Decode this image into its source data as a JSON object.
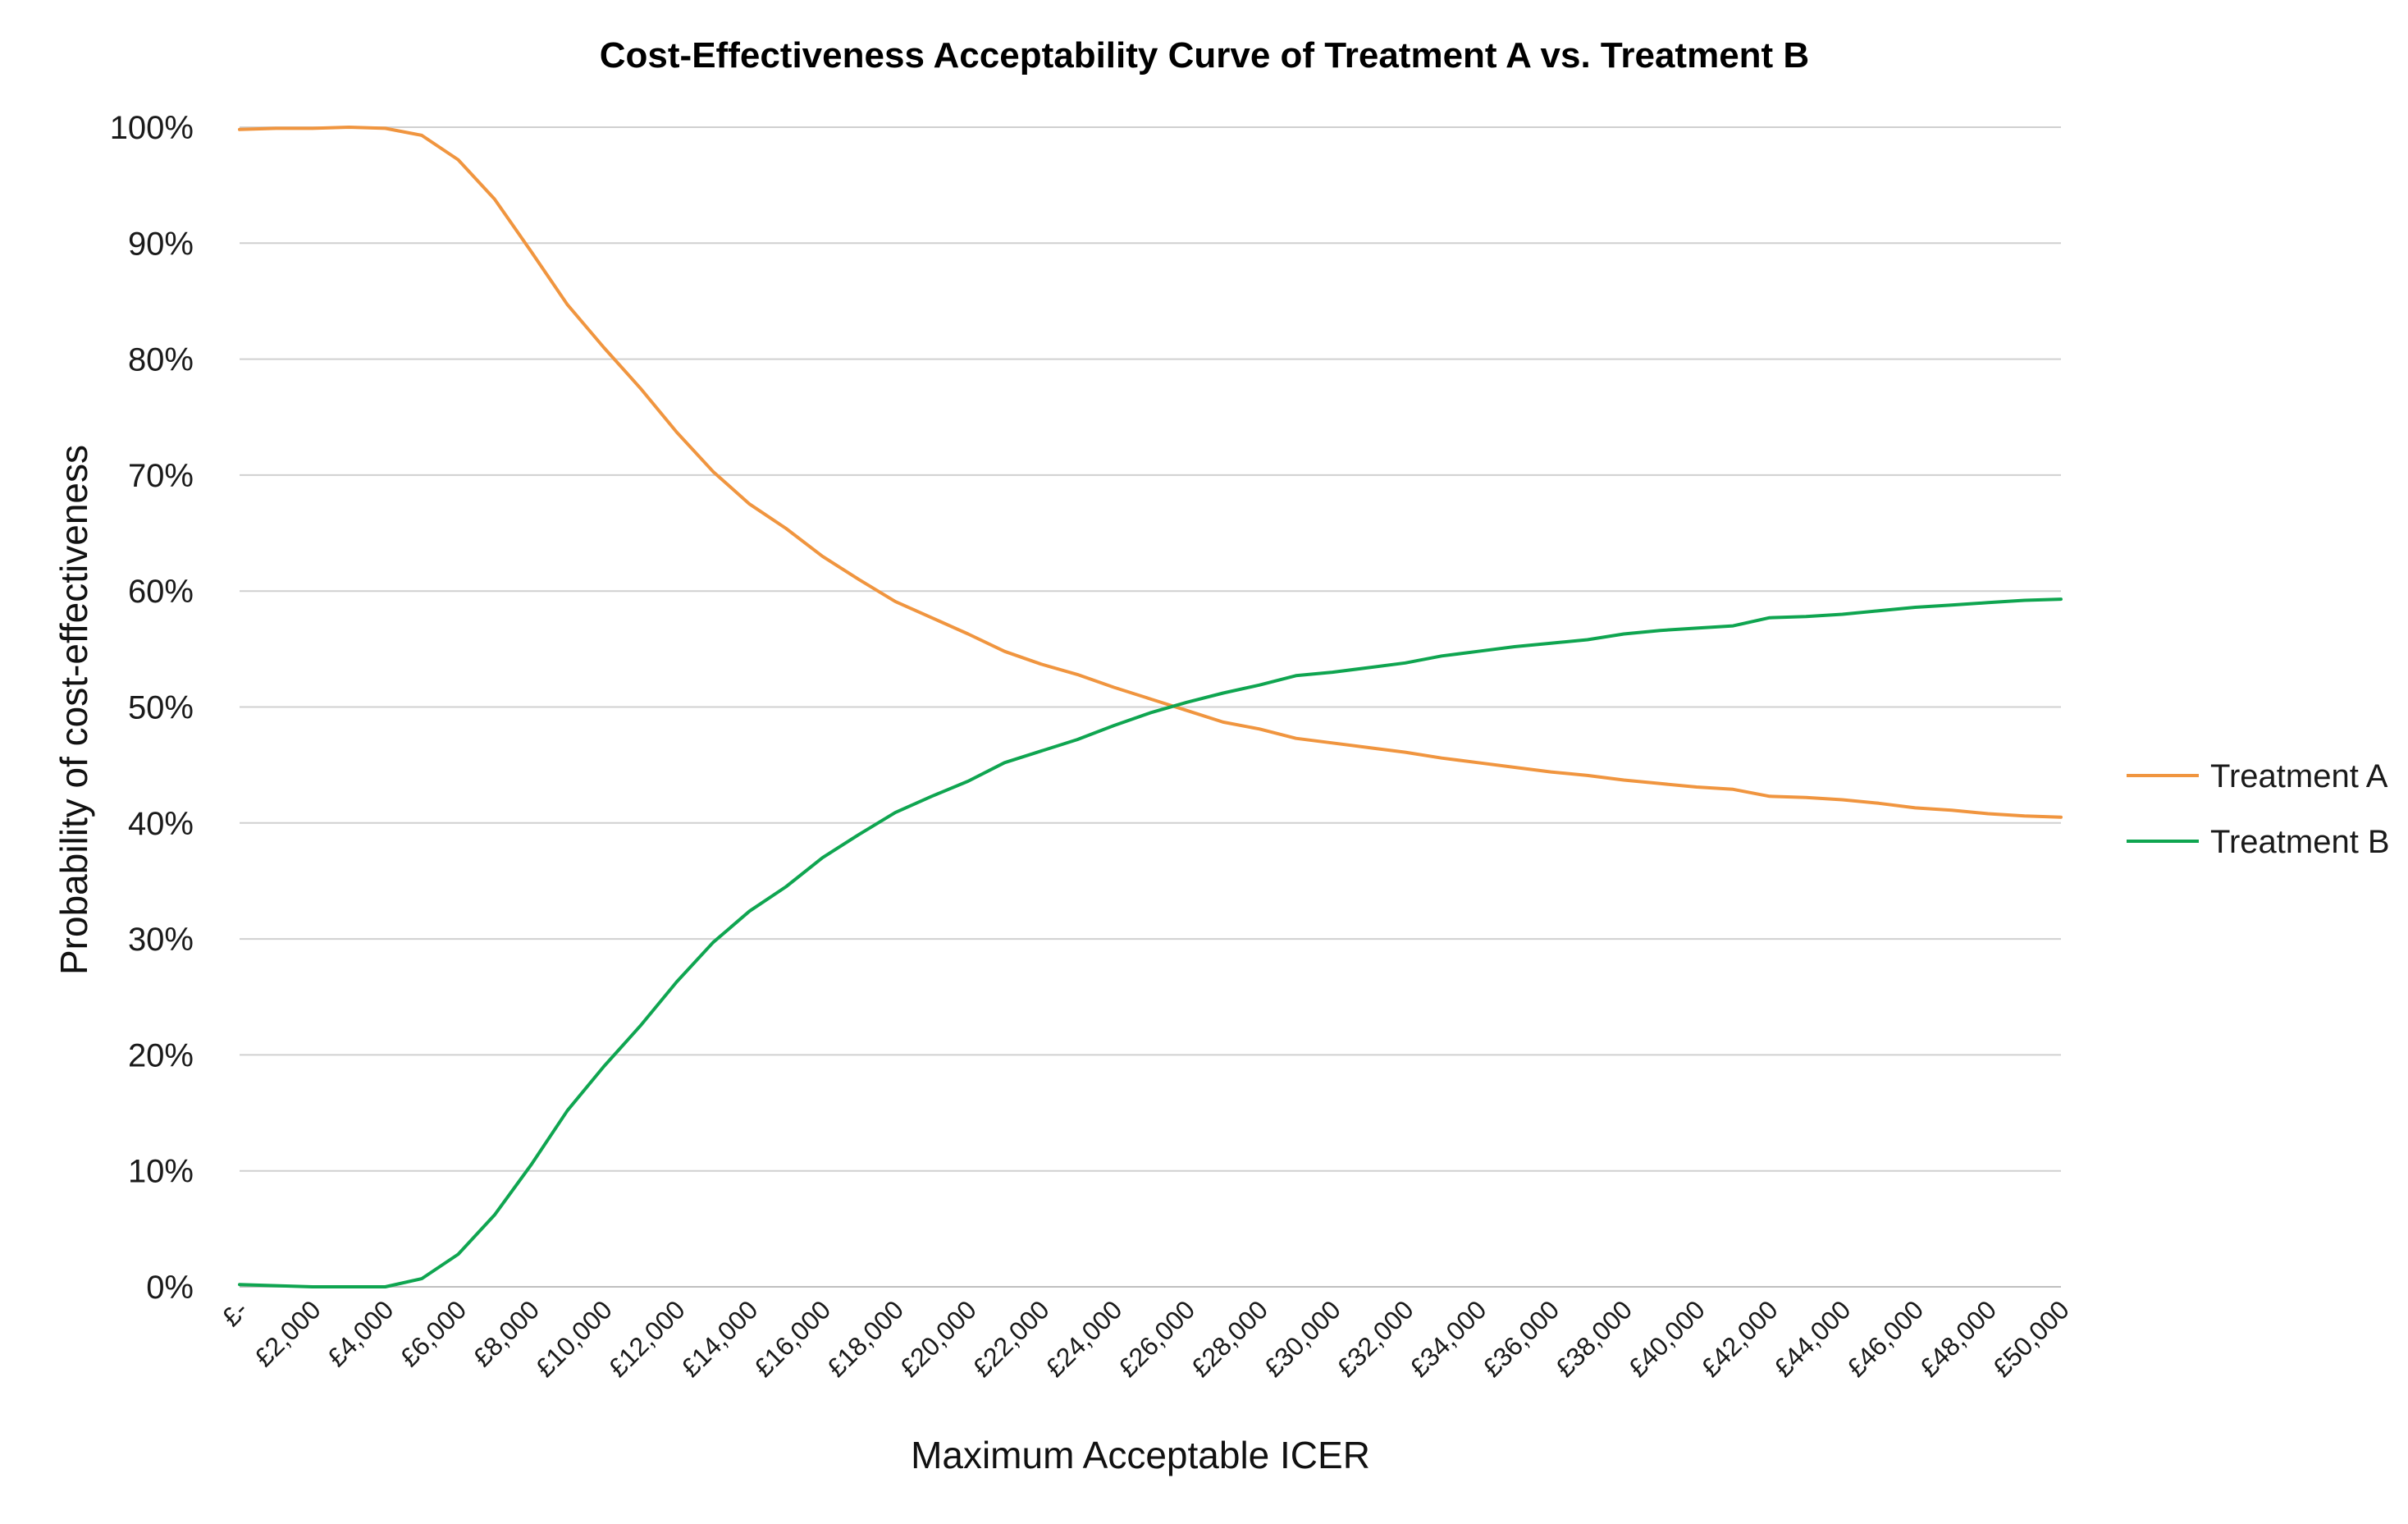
{
  "chart_data": {
    "type": "line",
    "title": "Cost-Effectiveness Acceptability Curve of Treatment A vs. Treatment B",
    "xlabel": "Maximum Acceptable ICER",
    "ylabel": "Probability of cost-effectiveness",
    "x": [
      0,
      1000,
      2000,
      3000,
      4000,
      5000,
      6000,
      7000,
      8000,
      9000,
      10000,
      11000,
      12000,
      13000,
      14000,
      15000,
      16000,
      17000,
      18000,
      19000,
      20000,
      21000,
      22000,
      23000,
      24000,
      25000,
      26000,
      27000,
      28000,
      29000,
      30000,
      31000,
      32000,
      33000,
      34000,
      35000,
      36000,
      37000,
      38000,
      39000,
      40000,
      41000,
      42000,
      43000,
      44000,
      45000,
      46000,
      47000,
      48000,
      49000,
      50000
    ],
    "x_tick_labels": [
      "£-",
      "£2,000",
      "£4,000",
      "£6,000",
      "£8,000",
      "£10,000",
      "£12,000",
      "£14,000",
      "£16,000",
      "£18,000",
      "£20,000",
      "£22,000",
      "£24,000",
      "£26,000",
      "£28,000",
      "£30,000",
      "£32,000",
      "£34,000",
      "£36,000",
      "£38,000",
      "£40,000",
      "£42,000",
      "£44,000",
      "£46,000",
      "£48,000",
      "£50,000"
    ],
    "y_tick_labels": [
      "0%",
      "10%",
      "20%",
      "30%",
      "40%",
      "50%",
      "60%",
      "70%",
      "80%",
      "90%",
      "100%"
    ],
    "ylim": [
      0,
      1
    ],
    "xlim": [
      0,
      50000
    ],
    "grid": true,
    "legend_position": "right",
    "series": [
      {
        "name": "Treatment A",
        "color": "#F0953F",
        "values": [
          0.998,
          0.999,
          0.999,
          1.0,
          0.999,
          0.993,
          0.972,
          0.938,
          0.893,
          0.847,
          0.81,
          0.775,
          0.737,
          0.703,
          0.675,
          0.654,
          0.63,
          0.61,
          0.591,
          0.577,
          0.563,
          0.548,
          0.537,
          0.528,
          0.517,
          0.507,
          0.497,
          0.487,
          0.481,
          0.473,
          0.469,
          0.465,
          0.461,
          0.456,
          0.452,
          0.448,
          0.444,
          0.441,
          0.437,
          0.434,
          0.431,
          0.429,
          0.423,
          0.422,
          0.42,
          0.417,
          0.413,
          0.411,
          0.408,
          0.406,
          0.405
        ]
      },
      {
        "name": "Treatment B",
        "color": "#0FA550",
        "values": [
          0.002,
          0.001,
          0.0,
          0.0,
          0.0,
          0.007,
          0.028,
          0.062,
          0.105,
          0.152,
          0.19,
          0.225,
          0.263,
          0.297,
          0.324,
          0.345,
          0.37,
          0.39,
          0.409,
          0.423,
          0.436,
          0.452,
          0.462,
          0.472,
          0.484,
          0.495,
          0.504,
          0.512,
          0.519,
          0.527,
          0.53,
          0.534,
          0.538,
          0.544,
          0.548,
          0.552,
          0.555,
          0.558,
          0.563,
          0.566,
          0.568,
          0.57,
          0.577,
          0.578,
          0.58,
          0.583,
          0.586,
          0.588,
          0.59,
          0.592,
          0.593
        ]
      }
    ]
  }
}
